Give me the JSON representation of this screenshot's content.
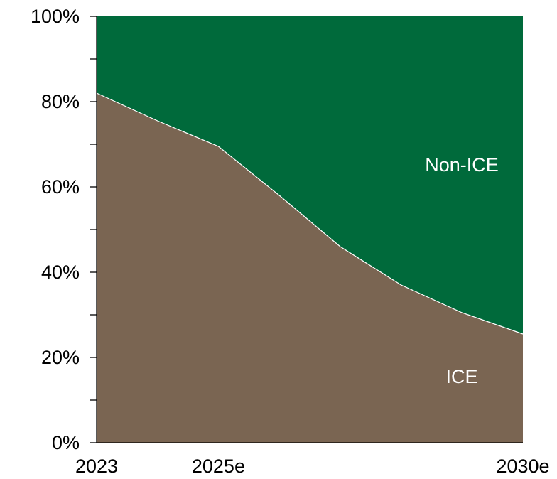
{
  "chart_data": {
    "type": "area",
    "stacked": true,
    "title": "",
    "xlabel": "",
    "ylabel": "",
    "x": [
      2023,
      2024,
      2025,
      2026,
      2027,
      2028,
      2029,
      2030
    ],
    "x_tick_labels": [
      {
        "x": 2023,
        "label": "2023"
      },
      {
        "x": 2025,
        "label": "2025e"
      },
      {
        "x": 2030,
        "label": "2030e"
      }
    ],
    "y_tick_labels": [
      "0%",
      "20%",
      "40%",
      "60%",
      "80%",
      "100%"
    ],
    "y_ticks": [
      0,
      20,
      40,
      60,
      80,
      100
    ],
    "ylim": [
      0,
      100
    ],
    "xlim": [
      2023,
      2030
    ],
    "grid": false,
    "legend": "none",
    "series": [
      {
        "name": "ICE",
        "color": "#7a6552",
        "values": [
          82,
          75.5,
          69.5,
          58,
          46,
          37,
          30.5,
          25.5
        ]
      },
      {
        "name": "Non-ICE",
        "color": "#006a3b",
        "values": [
          18,
          24.5,
          30.5,
          42,
          54,
          63,
          69.5,
          74.5
        ]
      }
    ]
  }
}
